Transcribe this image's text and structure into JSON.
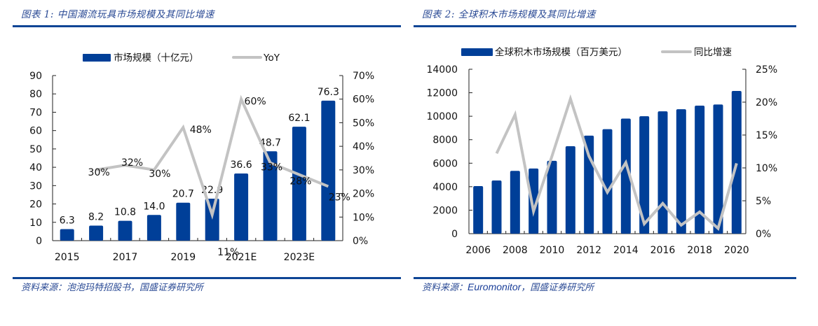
{
  "panels": [
    {
      "title": "图表 1:  中国潮流玩具市场规模及其同比增速",
      "source_prefix": "资料来源：",
      "source_body": "泡泡玛特招股书，国盛证券研究所",
      "source_latin": ""
    },
    {
      "title": "图表 2:  全球积木市场规模及其同比增速",
      "source_prefix": "资料来源：",
      "source_body": "，国盛证券研究所",
      "source_latin": "Euromonitor"
    }
  ],
  "colors": {
    "bar": "#003f98",
    "line": "#c3c3c3",
    "axis": "#222222",
    "title": "#2a4a95"
  },
  "chart_data": [
    {
      "type": "bar+line",
      "title": "中国潮流玩具市场规模及其同比增速",
      "categories": [
        "2015",
        "2016",
        "2017",
        "2018",
        "2019",
        "2020",
        "2021E",
        "2022E",
        "2023E",
        "2024E"
      ],
      "x_tick_labels": [
        "2015",
        "",
        "2017",
        "",
        "2019",
        "",
        "2021E",
        "",
        "2023E",
        ""
      ],
      "series": [
        {
          "name": "市场规模（十亿元）",
          "type": "bar",
          "axis": "left",
          "values": [
            6.3,
            8.2,
            10.8,
            14.0,
            20.7,
            22.9,
            36.6,
            48.7,
            62.1,
            76.3
          ],
          "labels": [
            "6.3",
            "8.2",
            "10.8",
            "14.0",
            "20.7",
            "22.9",
            "36.6",
            "48.7",
            "62.1",
            "76.3"
          ]
        },
        {
          "name": "YoY",
          "type": "line",
          "axis": "right",
          "values": [
            null,
            30,
            32,
            30,
            48,
            11,
            60,
            33,
            28,
            23
          ],
          "labels": [
            "",
            "30%",
            "32%",
            "30%",
            "48%",
            "11%",
            "60%",
            "33%",
            "28%",
            "23%"
          ]
        }
      ],
      "y_left": {
        "min": 0,
        "max": 90,
        "step": 10,
        "tick_labels": [
          "0",
          "10",
          "20",
          "30",
          "40",
          "50",
          "60",
          "70",
          "80",
          "90"
        ]
      },
      "y_right": {
        "min": 0,
        "max": 70,
        "step": 10,
        "tick_labels": [
          "0%",
          "10%",
          "20%",
          "30%",
          "40%",
          "50%",
          "60%",
          "70%"
        ]
      },
      "legend": {
        "position": "top-center",
        "items": [
          "市场规模（十亿元）",
          "YoY"
        ]
      },
      "grid": false
    },
    {
      "type": "bar+line",
      "title": "全球积木市场规模及其同比增速",
      "categories": [
        "2006",
        "2007",
        "2008",
        "2009",
        "2010",
        "2011",
        "2012",
        "2013",
        "2014",
        "2015",
        "2016",
        "2017",
        "2018",
        "2019",
        "2020"
      ],
      "x_tick_labels": [
        "2006",
        "",
        "2008",
        "",
        "2010",
        "",
        "2012",
        "",
        "2014",
        "",
        "2016",
        "",
        "2018",
        "",
        "2020"
      ],
      "series": [
        {
          "name": "全球积木市场规模（百万美元）",
          "type": "bar",
          "axis": "left",
          "values": [
            4050,
            4530,
            5350,
            5550,
            6200,
            7450,
            8350,
            8900,
            9800,
            10000,
            10420,
            10600,
            10900,
            11000,
            12150
          ]
        },
        {
          "name": "同比增速",
          "type": "line",
          "axis": "right",
          "values": [
            null,
            12.2,
            18.1,
            3.4,
            11.8,
            20.5,
            11.8,
            6.3,
            10.8,
            1.5,
            4.6,
            1.3,
            3.3,
            0.8,
            10.7
          ]
        }
      ],
      "y_left": {
        "min": 0,
        "max": 14000,
        "step": 2000,
        "tick_labels": [
          "0",
          "2000",
          "4000",
          "6000",
          "8000",
          "10000",
          "12000",
          "14000"
        ]
      },
      "y_right": {
        "min": 0,
        "max": 25,
        "step": 5,
        "tick_labels": [
          "0%",
          "5%",
          "10%",
          "15%",
          "20%",
          "25%"
        ]
      },
      "legend": {
        "position": "top-center",
        "items": [
          "全球积木市场规模（百万美元）",
          "同比增速"
        ]
      },
      "grid": false
    }
  ]
}
